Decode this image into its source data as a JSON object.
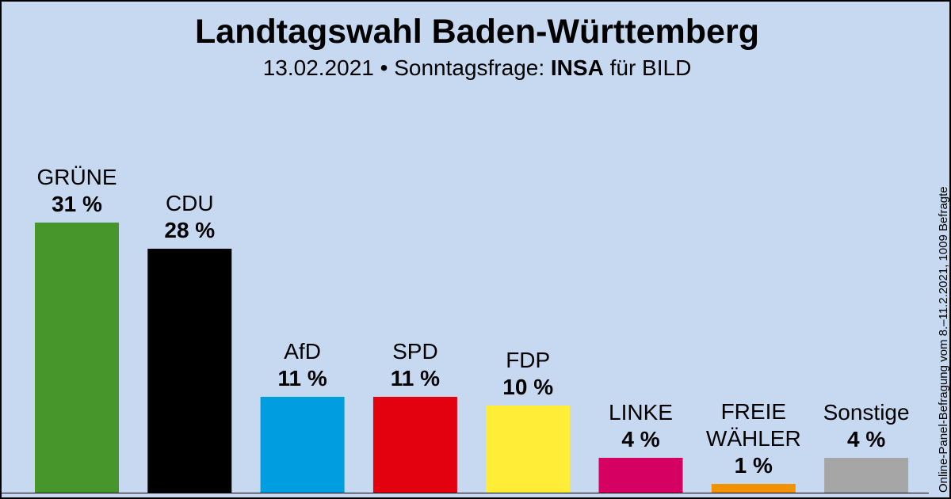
{
  "title": "Landtagswahl Baden-Württemberg",
  "subtitle": {
    "date_prefix": "13.02.2021 • Sonntagsfrage: ",
    "institute": "INSA",
    "suffix": " für BILD"
  },
  "note": "Online-Panel-Befragung vom 8.–11.2.2021, 1009 Befragte",
  "chart_data": {
    "type": "bar",
    "title": "Landtagswahl Baden-Württemberg",
    "xlabel": "",
    "ylabel": "",
    "ylim": [
      0,
      32
    ],
    "grid": false,
    "categories": [
      {
        "name_lines": [
          "GRÜNE"
        ],
        "value": 31,
        "label": "31 %",
        "color": "#46962b"
      },
      {
        "name_lines": [
          "CDU"
        ],
        "value": 28,
        "label": "28 %",
        "color": "#000000"
      },
      {
        "name_lines": [
          "AfD"
        ],
        "value": 11,
        "label": "11 %",
        "color": "#009ee0"
      },
      {
        "name_lines": [
          "SPD"
        ],
        "value": 11,
        "label": "11 %",
        "color": "#e3000f"
      },
      {
        "name_lines": [
          "FDP"
        ],
        "value": 10,
        "label": "10 %",
        "color": "#ffed37"
      },
      {
        "name_lines": [
          "LINKE"
        ],
        "value": 4,
        "label": "4 %",
        "color": "#d50061"
      },
      {
        "name_lines": [
          "FREIE",
          "WÄHLER"
        ],
        "value": 1,
        "label": "1 %",
        "color": "#f39200"
      },
      {
        "name_lines": [
          "Sonstige"
        ],
        "value": 4,
        "label": "4 %",
        "color": "#a6a6a6"
      }
    ]
  }
}
